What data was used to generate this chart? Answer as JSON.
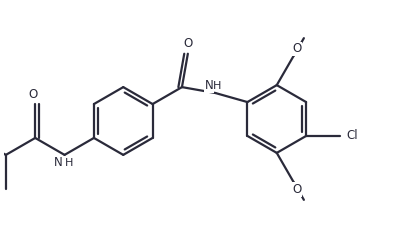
{
  "bg_color": "#ffffff",
  "line_color": "#2a2a3a",
  "line_width": 1.6,
  "text_color": "#2a2a3a",
  "font_size": 8.5,
  "figsize": [
    4.06,
    2.42
  ],
  "dpi": 100,
  "xlim": [
    0,
    10
  ],
  "ylim": [
    0,
    6
  ]
}
